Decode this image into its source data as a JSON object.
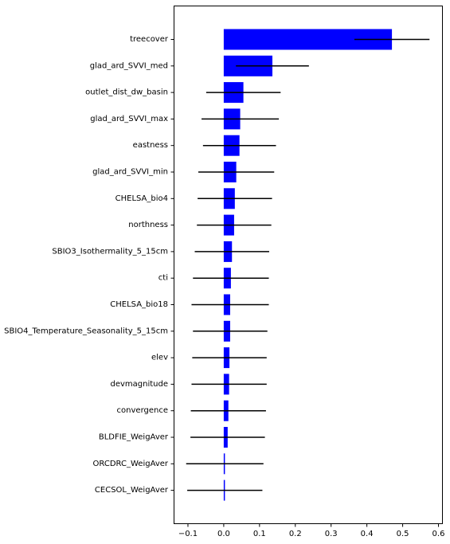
{
  "chart_data": {
    "type": "bar",
    "orientation": "horizontal",
    "title": "",
    "xlabel": "",
    "ylabel": "",
    "xlim": [
      -0.14,
      0.61
    ],
    "xticks": [
      -0.1,
      0.0,
      0.1,
      0.2,
      0.3,
      0.4,
      0.5,
      0.6
    ],
    "xtick_labels": [
      "−0.1",
      "0.0",
      "0.1",
      "0.2",
      "0.3",
      "0.4",
      "0.5",
      "0.6"
    ],
    "grid": false,
    "bar_color": "#0000ff",
    "errorbar_color": "#000000",
    "categories": [
      "treecover",
      "glad_ard_SVVI_med",
      "outlet_dist_dw_basin",
      "glad_ard_SVVI_max",
      "eastness",
      "glad_ard_SVVI_min",
      "CHELSA_bio4",
      "northness",
      "SBIO3_Isothermality_5_15cm",
      "cti",
      "CHELSA_bio18",
      "SBIO4_Temperature_Seasonality_5_15cm",
      "elev",
      "devmagnitude",
      "convergence",
      "BLDFIE_WeigAver",
      "ORCDRC_WeigAver",
      "CECSOL_WeigAver"
    ],
    "values": [
      0.47,
      0.136,
      0.055,
      0.046,
      0.044,
      0.035,
      0.031,
      0.029,
      0.023,
      0.02,
      0.018,
      0.018,
      0.016,
      0.015,
      0.013,
      0.011,
      0.003,
      0.003
    ],
    "errors": [
      0.105,
      0.102,
      0.104,
      0.108,
      0.102,
      0.106,
      0.104,
      0.104,
      0.104,
      0.106,
      0.108,
      0.104,
      0.104,
      0.105,
      0.105,
      0.104,
      0.108,
      0.105
    ]
  }
}
